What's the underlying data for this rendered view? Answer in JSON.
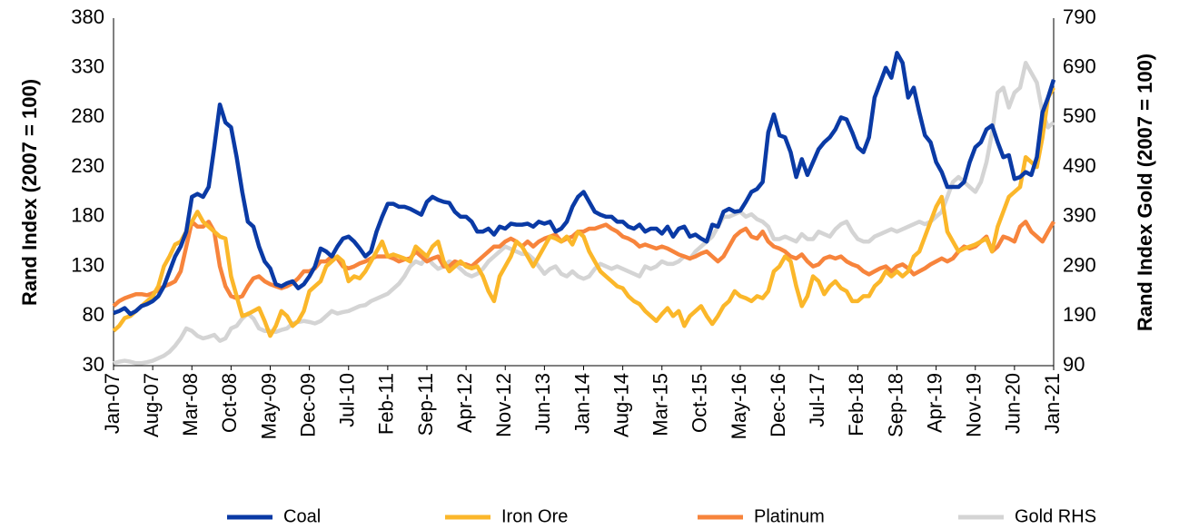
{
  "chart_data": {
    "type": "line",
    "y_label": "Rand Index (2007 = 100)",
    "y2_label": "Rand Index Gold (2007 = 100)",
    "categories": [
      "Jan-07",
      null,
      null,
      null,
      null,
      null,
      null,
      "Aug-07",
      null,
      null,
      null,
      null,
      null,
      null,
      "Mar-08",
      null,
      null,
      null,
      null,
      null,
      null,
      "Oct-08",
      null,
      null,
      null,
      null,
      null,
      null,
      "May-09",
      null,
      null,
      null,
      null,
      null,
      null,
      "Dec-09",
      null,
      null,
      null,
      null,
      null,
      null,
      "Jul-10",
      null,
      null,
      null,
      null,
      null,
      null,
      "Feb-11",
      null,
      null,
      null,
      null,
      null,
      null,
      "Sep-11",
      null,
      null,
      null,
      null,
      null,
      null,
      "Apr-12",
      null,
      null,
      null,
      null,
      null,
      null,
      "Nov-12",
      null,
      null,
      null,
      null,
      null,
      null,
      "Jun-13",
      null,
      null,
      null,
      null,
      null,
      null,
      "Jan-14",
      null,
      null,
      null,
      null,
      null,
      null,
      "Aug-14",
      null,
      null,
      null,
      null,
      null,
      null,
      "Mar-15",
      null,
      null,
      null,
      null,
      null,
      null,
      "Oct-15",
      null,
      null,
      null,
      null,
      null,
      null,
      "May-16",
      null,
      null,
      null,
      null,
      null,
      null,
      "Dec-16",
      null,
      null,
      null,
      null,
      null,
      null,
      "Jul-17",
      null,
      null,
      null,
      null,
      null,
      null,
      "Feb-18",
      null,
      null,
      null,
      null,
      null,
      null,
      "Sep-18",
      null,
      null,
      null,
      null,
      null,
      null,
      "Apr-19",
      null,
      null,
      null,
      null,
      null,
      null,
      "Nov-19",
      null,
      null,
      null,
      null,
      null,
      null,
      "Jun-20",
      null,
      null,
      null,
      null,
      null,
      null,
      "Jan-21"
    ],
    "ylim": [
      30,
      380
    ],
    "yticks": [
      30,
      80,
      130,
      180,
      230,
      280,
      330,
      380
    ],
    "y2lim": [
      90,
      790
    ],
    "y2ticks": [
      90,
      190,
      290,
      390,
      490,
      590,
      690,
      790
    ],
    "series": [
      {
        "name": "Coal",
        "color": "#0a3aa5",
        "values": [
          83,
          85,
          88,
          82,
          85,
          90,
          92,
          95,
          100,
          110,
          125,
          140,
          150,
          165,
          200,
          203,
          200,
          210,
          250,
          293,
          275,
          270,
          240,
          205,
          175,
          170,
          150,
          135,
          128,
          112,
          110,
          113,
          115,
          108,
          112,
          120,
          130,
          148,
          145,
          140,
          150,
          158,
          160,
          155,
          148,
          140,
          145,
          165,
          180,
          193,
          193,
          190,
          190,
          188,
          185,
          182,
          195,
          200,
          197,
          195,
          194,
          185,
          180,
          180,
          175,
          165,
          165,
          168,
          162,
          170,
          168,
          173,
          172,
          172,
          173,
          170,
          175,
          173,
          175,
          165,
          168,
          175,
          190,
          200,
          205,
          195,
          185,
          182,
          180,
          180,
          175,
          175,
          170,
          168,
          172,
          165,
          168,
          168,
          163,
          170,
          160,
          168,
          170,
          160,
          162,
          158,
          155,
          172,
          170,
          185,
          188,
          185,
          186,
          195,
          205,
          208,
          215,
          265,
          283,
          262,
          260,
          245,
          220,
          238,
          222,
          235,
          248,
          255,
          260,
          268,
          280,
          278,
          265,
          250,
          245,
          260,
          300,
          315,
          330,
          320,
          345,
          335,
          300,
          310,
          285,
          262,
          255,
          235,
          225,
          210,
          210,
          210,
          215,
          235,
          250,
          255,
          268,
          272,
          255,
          240,
          242,
          218,
          220,
          225,
          222,
          240,
          285,
          300,
          318
        ]
      },
      {
        "name": "Iron Ore",
        "color": "#fbb72a",
        "values": [
          65,
          70,
          78,
          80,
          85,
          90,
          95,
          100,
          110,
          130,
          140,
          152,
          155,
          165,
          175,
          185,
          175,
          170,
          165,
          160,
          158,
          120,
          100,
          80,
          82,
          85,
          88,
          75,
          60,
          70,
          85,
          80,
          70,
          75,
          85,
          105,
          110,
          115,
          130,
          135,
          140,
          135,
          115,
          120,
          118,
          125,
          135,
          145,
          155,
          140,
          142,
          140,
          138,
          135,
          150,
          145,
          140,
          150,
          155,
          135,
          125,
          130,
          135,
          130,
          128,
          130,
          120,
          105,
          95,
          120,
          130,
          140,
          155,
          150,
          140,
          130,
          140,
          150,
          160,
          158,
          155,
          160,
          152,
          165,
          160,
          145,
          135,
          125,
          120,
          115,
          110,
          108,
          100,
          95,
          92,
          85,
          80,
          75,
          82,
          88,
          80,
          85,
          70,
          80,
          85,
          90,
          80,
          72,
          80,
          90,
          95,
          105,
          100,
          98,
          95,
          100,
          98,
          105,
          125,
          130,
          140,
          135,
          110,
          90,
          100,
          120,
          115,
          102,
          110,
          115,
          108,
          105,
          95,
          95,
          100,
          100,
          110,
          115,
          125,
          120,
          125,
          120,
          125,
          140,
          145,
          160,
          175,
          190,
          200,
          165,
          155,
          145,
          148,
          150,
          152,
          155,
          158,
          145,
          170,
          185,
          200,
          205,
          210,
          240,
          235,
          230,
          260,
          300,
          310
        ]
      },
      {
        "name": "Platinum",
        "color": "#f7843c",
        "values": [
          90,
          95,
          98,
          100,
          102,
          102,
          101,
          103,
          106,
          110,
          112,
          115,
          125,
          150,
          175,
          170,
          170,
          175,
          165,
          130,
          110,
          100,
          98,
          100,
          110,
          118,
          120,
          115,
          112,
          110,
          108,
          110,
          113,
          118,
          125,
          125,
          128,
          135,
          135,
          140,
          138,
          130,
          128,
          130,
          133,
          135,
          138,
          140,
          140,
          140,
          138,
          135,
          137,
          138,
          145,
          140,
          135,
          138,
          140,
          130,
          130,
          135,
          133,
          132,
          130,
          135,
          140,
          145,
          150,
          150,
          155,
          158,
          155,
          150,
          155,
          150,
          155,
          158,
          160,
          162,
          155,
          158,
          160,
          165,
          165,
          168,
          168,
          170,
          172,
          168,
          165,
          160,
          158,
          155,
          150,
          152,
          150,
          148,
          150,
          148,
          145,
          142,
          140,
          138,
          140,
          143,
          145,
          140,
          135,
          140,
          150,
          160,
          165,
          168,
          160,
          158,
          165,
          155,
          150,
          148,
          145,
          140,
          138,
          142,
          135,
          130,
          132,
          138,
          140,
          138,
          140,
          135,
          132,
          130,
          125,
          122,
          125,
          128,
          130,
          125,
          130,
          132,
          128,
          122,
          125,
          128,
          132,
          135,
          138,
          135,
          138,
          145,
          150,
          148,
          150,
          155,
          160,
          145,
          150,
          160,
          158,
          155,
          170,
          175,
          165,
          160,
          155,
          165,
          175
        ]
      },
      {
        "name": "Gold RHS",
        "color": "#d4d4d4",
        "axis": "y2",
        "values": [
          95,
          98,
          100,
          98,
          95,
          95,
          97,
          100,
          105,
          110,
          118,
          130,
          145,
          165,
          160,
          150,
          145,
          148,
          152,
          140,
          145,
          165,
          170,
          185,
          195,
          185,
          165,
          160,
          160,
          158,
          162,
          165,
          175,
          178,
          180,
          178,
          175,
          180,
          190,
          200,
          195,
          198,
          200,
          205,
          210,
          212,
          220,
          225,
          230,
          235,
          245,
          255,
          270,
          290,
          300,
          295,
          310,
          295,
          285,
          290,
          300,
          295,
          285,
          275,
          270,
          275,
          285,
          300,
          310,
          320,
          330,
          325,
          320,
          315,
          315,
          305,
          290,
          275,
          285,
          290,
          275,
          270,
          280,
          270,
          265,
          270,
          285,
          295,
          290,
          285,
          290,
          285,
          280,
          275,
          270,
          290,
          285,
          290,
          300,
          295,
          295,
          300,
          310,
          305,
          320,
          330,
          340,
          350,
          370,
          390,
          390,
          395,
          400,
          390,
          395,
          385,
          380,
          370,
          345,
          345,
          350,
          345,
          340,
          355,
          345,
          345,
          360,
          355,
          350,
          365,
          375,
          380,
          360,
          345,
          340,
          340,
          350,
          355,
          360,
          365,
          360,
          365,
          370,
          375,
          380,
          375,
          380,
          390,
          400,
          430,
          460,
          470,
          460,
          450,
          440,
          460,
          500,
          560,
          640,
          650,
          610,
          640,
          650,
          700,
          680,
          660,
          600,
          570,
          580
        ]
      }
    ]
  }
}
